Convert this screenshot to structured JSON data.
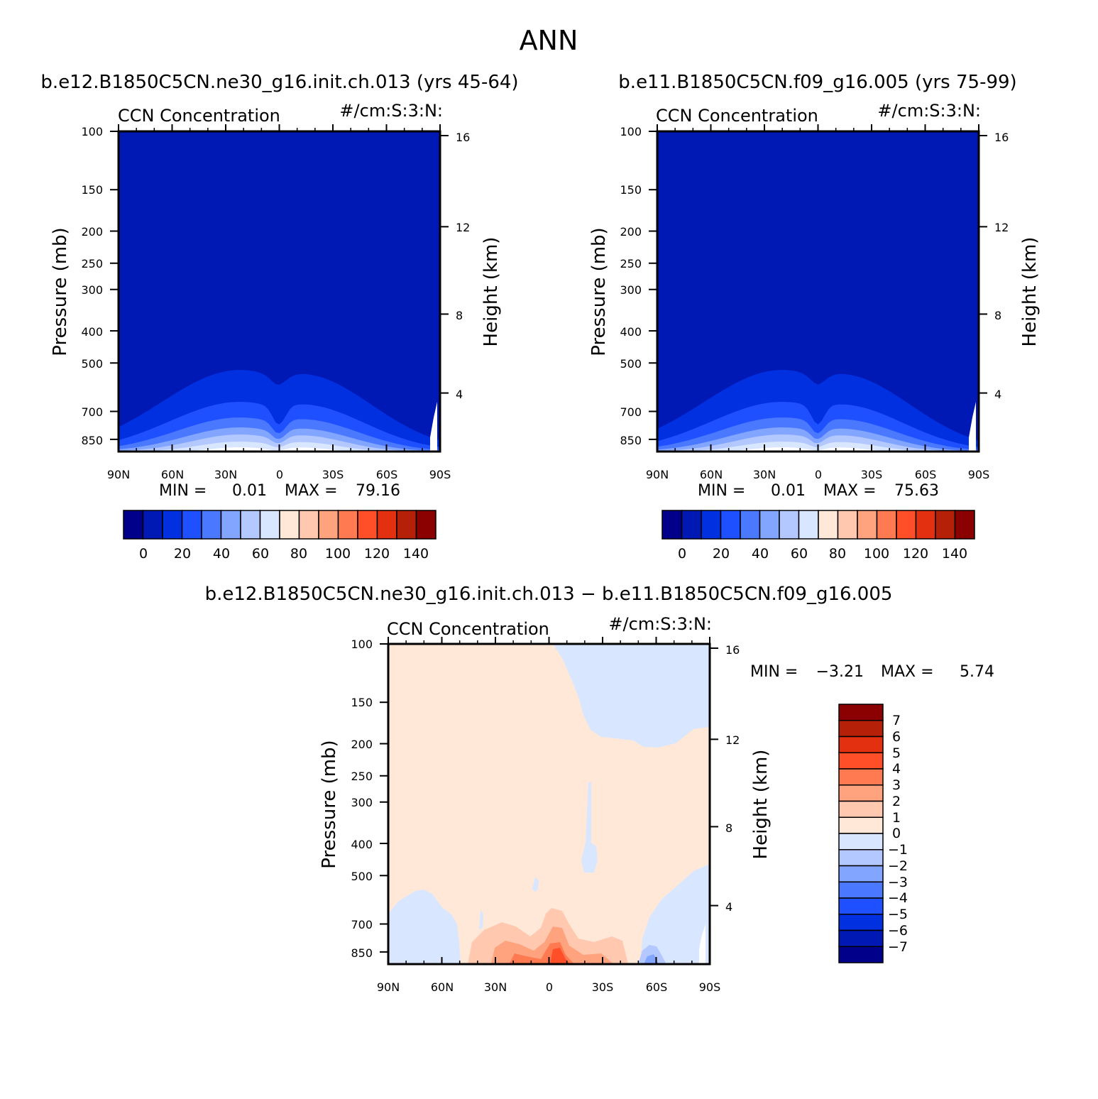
{
  "title": "ANN",
  "palettes": {
    "abs": [
      "#00008b",
      "#0018b4",
      "#0030e0",
      "#1e50ff",
      "#4a78ff",
      "#82a5ff",
      "#b3c8ff",
      "#d8e7ff",
      "#ffe8d7",
      "#ffc8af",
      "#ffa37f",
      "#ff7a50",
      "#ff4f28",
      "#e23010",
      "#b52108",
      "#8b0000"
    ],
    "diff": [
      "#00008b",
      "#0018b4",
      "#0030e0",
      "#1e50ff",
      "#4a78ff",
      "#82a5ff",
      "#b3c8ff",
      "#d8e7ff",
      "#ffe8d7",
      "#ffc8af",
      "#ffa37f",
      "#ff7a50",
      "#ff4f28",
      "#e23010",
      "#b52108",
      "#8b0000"
    ]
  },
  "chart_data": [
    {
      "type": "contour",
      "title": "b.e12.B1850C5CN.ne30_g16.init.ch.013 (yrs 45-64)",
      "left_label": "CCN Concentration",
      "right_label": "#/cm:S:3:N:",
      "ylabel": "Pressure (mb)",
      "y2label": "Height (km)",
      "x_ticks": [
        "90N",
        "60N",
        "30N",
        "0",
        "30S",
        "60S",
        "90S"
      ],
      "y_ticks": [
        "100",
        "150",
        "200",
        "250",
        "300",
        "400",
        "500",
        "700",
        "850"
      ],
      "y2_ticks": [
        "16",
        "12",
        "8",
        "4"
      ],
      "stats": {
        "min_label": "MIN =",
        "min": "0.01",
        "max_label": "MAX =",
        "max": "79.16"
      },
      "colorbar_labels": [
        "0",
        "20",
        "40",
        "60",
        "80",
        "100",
        "120",
        "140"
      ],
      "peaks": [
        {
          "lat": 22,
          "val": 75
        },
        {
          "lat": -12,
          "val": 72
        }
      ],
      "background_value": 5
    },
    {
      "type": "contour",
      "title": "b.e11.B1850C5CN.f09_g16.005 (yrs 75-99)",
      "left_label": "CCN Concentration",
      "right_label": "#/cm:S:3:N:",
      "ylabel": "Pressure (mb)",
      "y2label": "Height (km)",
      "x_ticks": [
        "90N",
        "60N",
        "30N",
        "0",
        "30S",
        "60S",
        "90S"
      ],
      "y_ticks": [
        "100",
        "150",
        "200",
        "250",
        "300",
        "400",
        "500",
        "700",
        "850"
      ],
      "y2_ticks": [
        "16",
        "12",
        "8",
        "4"
      ],
      "stats": {
        "min_label": "MIN =",
        "min": "0.01",
        "max_label": "MAX =",
        "max": "75.63"
      },
      "colorbar_labels": [
        "0",
        "20",
        "40",
        "60",
        "80",
        "100",
        "120",
        "140"
      ],
      "peaks": [
        {
          "lat": 20,
          "val": 72
        },
        {
          "lat": -12,
          "val": 70
        }
      ],
      "background_value": 5
    },
    {
      "type": "contour",
      "title": "b.e12.B1850C5CN.ne30_g16.init.ch.013 − b.e11.B1850C5CN.f09_g16.005",
      "left_label": "CCN Concentration",
      "right_label": "#/cm:S:3:N:",
      "ylabel": "Pressure (mb)",
      "y2label": "Height (km)",
      "x_ticks": [
        "90N",
        "60N",
        "30N",
        "0",
        "30S",
        "60S",
        "90S"
      ],
      "y_ticks": [
        "100",
        "150",
        "200",
        "250",
        "300",
        "400",
        "500",
        "700",
        "850"
      ],
      "y2_ticks": [
        "16",
        "12",
        "8",
        "4"
      ],
      "stats": {
        "min_label": "MIN =",
        "min": "−3.21",
        "max_label": "MAX =",
        "max": "5.74"
      },
      "colorbar_labels": [
        "7",
        "6",
        "5",
        "4",
        "3",
        "2",
        "1",
        "0",
        "−1",
        "−2",
        "−3",
        "−4",
        "−5",
        "−6",
        "−7"
      ],
      "background_value": 0.5,
      "negative_regions": [
        "NH high latitudes below 500 mb",
        "SH 55S-90S below 500 mb",
        "SH upper levels 25S-90S above 200 mb"
      ],
      "max_region": "equator to 10S near surface"
    }
  ]
}
